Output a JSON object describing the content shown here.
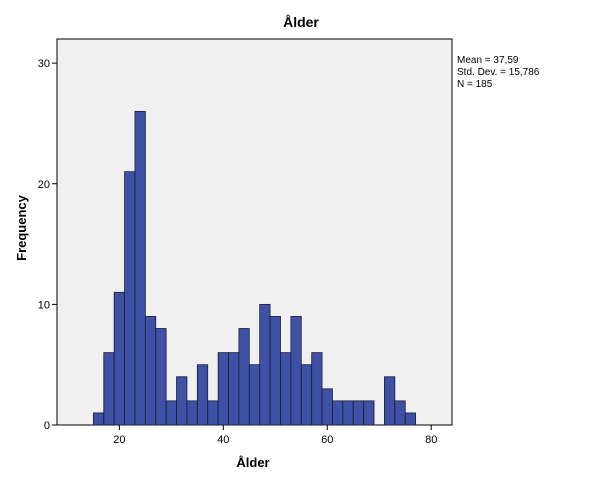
{
  "chart_data": {
    "type": "bar",
    "title": "Ålder",
    "xlabel": "Ålder",
    "ylabel": "Frequency",
    "xlim": [
      8,
      84
    ],
    "ylim": [
      0,
      32
    ],
    "xticks": [
      20,
      40,
      60,
      80
    ],
    "yticks": [
      0,
      10,
      20,
      30
    ],
    "bin_width": 2,
    "bins": [
      {
        "start": 15,
        "value": 1
      },
      {
        "start": 17,
        "value": 6
      },
      {
        "start": 19,
        "value": 11
      },
      {
        "start": 21,
        "value": 21
      },
      {
        "start": 23,
        "value": 26
      },
      {
        "start": 25,
        "value": 9
      },
      {
        "start": 27,
        "value": 8
      },
      {
        "start": 29,
        "value": 2
      },
      {
        "start": 31,
        "value": 4
      },
      {
        "start": 33,
        "value": 2
      },
      {
        "start": 35,
        "value": 5
      },
      {
        "start": 37,
        "value": 2
      },
      {
        "start": 39,
        "value": 6
      },
      {
        "start": 41,
        "value": 6
      },
      {
        "start": 43,
        "value": 8
      },
      {
        "start": 45,
        "value": 5
      },
      {
        "start": 47,
        "value": 10
      },
      {
        "start": 49,
        "value": 9
      },
      {
        "start": 51,
        "value": 6
      },
      {
        "start": 53,
        "value": 9
      },
      {
        "start": 55,
        "value": 5
      },
      {
        "start": 57,
        "value": 6
      },
      {
        "start": 59,
        "value": 3
      },
      {
        "start": 61,
        "value": 2
      },
      {
        "start": 63,
        "value": 2
      },
      {
        "start": 65,
        "value": 2
      },
      {
        "start": 67,
        "value": 2
      },
      {
        "start": 71,
        "value": 4
      },
      {
        "start": 73,
        "value": 2
      },
      {
        "start": 75,
        "value": 1
      }
    ],
    "stats": {
      "mean": "Mean = 37,59",
      "std_dev": "Std. Dev. = 15,786",
      "n": "N = 185"
    },
    "grid": false,
    "legend": "none"
  },
  "colors": {
    "bar_fill": "#3F51A5",
    "bar_stroke": "#1a1a3a",
    "plot_background": "#F0F0F0"
  }
}
